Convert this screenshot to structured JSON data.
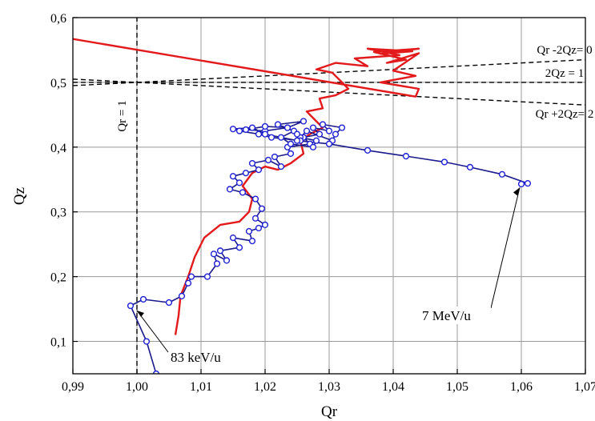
{
  "chart_data": {
    "type": "line",
    "xlabel": "Qr",
    "ylabel": "Qz",
    "xlim": [
      0.99,
      1.07
    ],
    "ylim": [
      0.05,
      0.6
    ],
    "grid": true,
    "x_ticks": [
      "0,99",
      "1,00",
      "1,01",
      "1,02",
      "1,03",
      "1,04",
      "1,05",
      "1,06",
      "1,07"
    ],
    "y_ticks": [
      "0,1",
      "0,2",
      "0,3",
      "0,4",
      "0,5",
      "0,6"
    ],
    "x_tick_values": [
      0.99,
      1.0,
      1.01,
      1.02,
      1.03,
      1.04,
      1.05,
      1.06,
      1.07
    ],
    "y_tick_values": [
      0.1,
      0.2,
      0.3,
      0.4,
      0.5,
      0.6
    ],
    "resonance_lines": [
      {
        "label": "Qr -2Qz= 0",
        "points": [
          [
            0.99,
            0.495
          ],
          [
            1.07,
            0.535
          ]
        ]
      },
      {
        "label": "2Qz = 1",
        "points": [
          [
            0.99,
            0.5
          ],
          [
            1.07,
            0.5
          ]
        ]
      },
      {
        "label": "Qr +2Qz= 2",
        "points": [
          [
            0.99,
            0.505
          ],
          [
            1.07,
            0.465
          ]
        ]
      },
      {
        "label": "Qr = 1",
        "points": [
          [
            1.0,
            0.05
          ],
          [
            1.0,
            0.6
          ]
        ]
      }
    ],
    "series": [
      {
        "color": "#e31a1c",
        "points": [
          [
            1.006,
            0.11
          ],
          [
            1.0065,
            0.14
          ],
          [
            1.0068,
            0.17
          ],
          [
            1.008,
            0.2
          ],
          [
            1.009,
            0.23
          ],
          [
            1.0105,
            0.26
          ],
          [
            1.013,
            0.28
          ],
          [
            1.016,
            0.285
          ],
          [
            1.0175,
            0.3
          ],
          [
            1.018,
            0.32
          ],
          [
            1.0165,
            0.34
          ],
          [
            1.018,
            0.36
          ],
          [
            1.02,
            0.37
          ],
          [
            1.022,
            0.365
          ],
          [
            1.024,
            0.375
          ],
          [
            1.026,
            0.39
          ],
          [
            1.0255,
            0.41
          ],
          [
            1.027,
            0.42
          ],
          [
            1.029,
            0.43
          ],
          [
            1.028,
            0.44
          ],
          [
            1.0265,
            0.455
          ],
          [
            1.029,
            0.46
          ],
          [
            1.0285,
            0.475
          ],
          [
            1.031,
            0.48
          ],
          [
            1.033,
            0.49
          ],
          [
            1.032,
            0.5
          ],
          [
            1.0305,
            0.515
          ],
          [
            1.028,
            0.52
          ],
          [
            1.031,
            0.53
          ],
          [
            1.036,
            0.525
          ],
          [
            1.034,
            0.537
          ],
          [
            1.041,
            0.542
          ],
          [
            1.036,
            0.552
          ],
          [
            1.043,
            0.548
          ],
          [
            1.038,
            0.544
          ],
          [
            1.044,
            0.552
          ],
          [
            1.037,
            0.547
          ],
          [
            1.042,
            0.535
          ],
          [
            1.039,
            0.53
          ],
          [
            1.044,
            0.545
          ],
          [
            1.04,
            0.518
          ],
          [
            1.0435,
            0.51
          ],
          [
            1.038,
            0.5
          ],
          [
            1.044,
            0.49
          ],
          [
            1.0435,
            0.478
          ],
          [
            0.99,
            0.567
          ]
        ]
      },
      {
        "color": "#1f1fd6",
        "points": [
          [
            1.003,
            0.05
          ],
          [
            1.0015,
            0.1
          ],
          [
            0.999,
            0.155
          ],
          [
            1.001,
            0.165
          ],
          [
            1.005,
            0.16
          ],
          [
            1.007,
            0.17
          ],
          [
            1.008,
            0.19
          ],
          [
            1.0085,
            0.2
          ],
          [
            1.011,
            0.2
          ],
          [
            1.0125,
            0.22
          ],
          [
            1.012,
            0.235
          ],
          [
            1.014,
            0.225
          ],
          [
            1.013,
            0.24
          ],
          [
            1.016,
            0.245
          ],
          [
            1.015,
            0.26
          ],
          [
            1.018,
            0.255
          ],
          [
            1.0175,
            0.27
          ],
          [
            1.019,
            0.275
          ],
          [
            1.02,
            0.28
          ],
          [
            1.0185,
            0.29
          ],
          [
            1.0195,
            0.305
          ],
          [
            1.0185,
            0.32
          ],
          [
            1.0165,
            0.33
          ],
          [
            1.0145,
            0.335
          ],
          [
            1.016,
            0.345
          ],
          [
            1.015,
            0.355
          ],
          [
            1.017,
            0.36
          ],
          [
            1.019,
            0.365
          ],
          [
            1.018,
            0.375
          ],
          [
            1.0205,
            0.38
          ],
          [
            1.0225,
            0.37
          ],
          [
            1.0215,
            0.385
          ],
          [
            1.024,
            0.39
          ],
          [
            1.0235,
            0.4
          ],
          [
            1.027,
            0.405
          ],
          [
            1.026,
            0.415
          ],
          [
            1.0285,
            0.42
          ],
          [
            1.0275,
            0.43
          ],
          [
            1.03,
            0.425
          ],
          [
            1.029,
            0.435
          ],
          [
            1.032,
            0.43
          ],
          [
            1.031,
            0.42
          ],
          [
            1.0305,
            0.41
          ],
          [
            1.0265,
            0.425
          ],
          [
            1.0255,
            0.415
          ],
          [
            1.028,
            0.41
          ],
          [
            1.0275,
            0.4
          ],
          [
            1.024,
            0.405
          ],
          [
            1.0225,
            0.415
          ],
          [
            1.0245,
            0.425
          ],
          [
            1.022,
            0.435
          ],
          [
            1.026,
            0.44
          ],
          [
            1.0235,
            0.43
          ],
          [
            1.02,
            0.425
          ],
          [
            1.017,
            0.427
          ],
          [
            1.02,
            0.432
          ],
          [
            1.0235,
            0.43
          ],
          [
            1.025,
            0.42
          ],
          [
            1.0255,
            0.41
          ],
          [
            1.021,
            0.415
          ],
          [
            1.019,
            0.42
          ],
          [
            1.016,
            0.425
          ],
          [
            1.015,
            0.428
          ],
          [
            1.018,
            0.43
          ],
          [
            1.02,
            0.42
          ],
          [
            1.025,
            0.41
          ],
          [
            1.03,
            0.405
          ],
          [
            1.036,
            0.395
          ],
          [
            1.042,
            0.386
          ],
          [
            1.048,
            0.377
          ],
          [
            1.052,
            0.369
          ],
          [
            1.057,
            0.358
          ],
          [
            1.061,
            0.344
          ],
          [
            1.06,
            0.343
          ]
        ]
      }
    ],
    "annotations": [
      {
        "text": "83 keV/u",
        "point": [
          0.9995,
          0.155
        ]
      },
      {
        "text": "7 MeV/u",
        "point": [
          1.0605,
          0.345
        ]
      }
    ]
  }
}
